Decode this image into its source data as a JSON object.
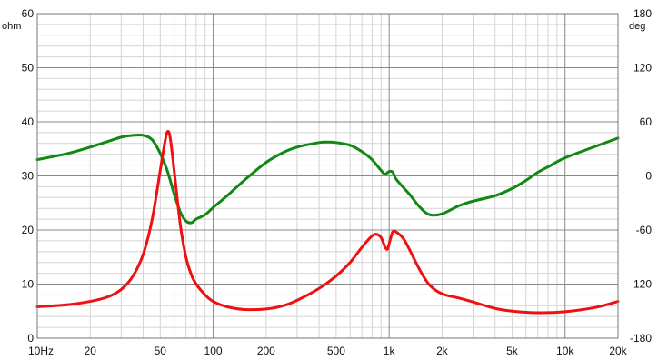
{
  "chart_data": {
    "type": "line",
    "title": "",
    "x_scale": "log",
    "xlim": [
      10,
      20000
    ],
    "x_ticks": [
      {
        "value": 10,
        "label": "10Hz"
      },
      {
        "value": 20,
        "label": "20"
      },
      {
        "value": 50,
        "label": "50"
      },
      {
        "value": 100,
        "label": "100"
      },
      {
        "value": 200,
        "label": "200"
      },
      {
        "value": 500,
        "label": "500"
      },
      {
        "value": 1000,
        "label": "1k"
      },
      {
        "value": 2000,
        "label": "2k"
      },
      {
        "value": 5000,
        "label": "5k"
      },
      {
        "value": 10000,
        "label": "10k"
      },
      {
        "value": 20000,
        "label": "20k"
      }
    ],
    "y_left": {
      "unit": "ohm",
      "ylim": [
        0,
        60
      ],
      "ticks": [
        0,
        10,
        20,
        30,
        40,
        50,
        60
      ],
      "tick_labels": [
        "0",
        "10",
        "20",
        "30",
        "40",
        "50",
        "60"
      ]
    },
    "y_right": {
      "unit": "deg",
      "ylim": [
        -180,
        180
      ],
      "ticks": [
        -180,
        -120,
        -60,
        0,
        60,
        120,
        180
      ],
      "tick_labels": [
        "-180",
        "-120",
        "-60",
        "0",
        "60",
        "120",
        "180"
      ]
    },
    "grid": true,
    "colors": {
      "impedance": "#ee1111",
      "phase": "#118811",
      "grid_major": "#888888",
      "grid_minor": "#d4d4d4",
      "frame": "#777777"
    },
    "series": [
      {
        "axis": "left",
        "points": [
          [
            10,
            5.8
          ],
          [
            15,
            6.2
          ],
          [
            20,
            6.8
          ],
          [
            25,
            7.6
          ],
          [
            30,
            9.0
          ],
          [
            35,
            11.5
          ],
          [
            40,
            15.5
          ],
          [
            45,
            22.0
          ],
          [
            50,
            31.0
          ],
          [
            53,
            36.0
          ],
          [
            55,
            38.2
          ],
          [
            57,
            37.0
          ],
          [
            60,
            31.0
          ],
          [
            65,
            21.0
          ],
          [
            70,
            15.0
          ],
          [
            75,
            11.8
          ],
          [
            80,
            10.0
          ],
          [
            90,
            8.0
          ],
          [
            100,
            6.8
          ],
          [
            120,
            5.8
          ],
          [
            150,
            5.3
          ],
          [
            200,
            5.4
          ],
          [
            250,
            6.0
          ],
          [
            300,
            7.0
          ],
          [
            400,
            9.2
          ],
          [
            500,
            11.5
          ],
          [
            600,
            14.0
          ],
          [
            700,
            16.8
          ],
          [
            800,
            18.9
          ],
          [
            850,
            19.2
          ],
          [
            900,
            18.6
          ],
          [
            950,
            16.8
          ],
          [
            980,
            16.5
          ],
          [
            1010,
            18.0
          ],
          [
            1050,
            19.7
          ],
          [
            1100,
            19.6
          ],
          [
            1200,
            18.5
          ],
          [
            1300,
            16.5
          ],
          [
            1500,
            12.5
          ],
          [
            1700,
            9.8
          ],
          [
            2000,
            8.2
          ],
          [
            2500,
            7.4
          ],
          [
            3000,
            6.7
          ],
          [
            4000,
            5.5
          ],
          [
            5000,
            5.0
          ],
          [
            7000,
            4.7
          ],
          [
            10000,
            4.9
          ],
          [
            15000,
            5.7
          ],
          [
            20000,
            6.8
          ]
        ]
      },
      {
        "axis": "right",
        "points": [
          [
            10,
            18
          ],
          [
            15,
            25
          ],
          [
            20,
            32
          ],
          [
            25,
            38
          ],
          [
            30,
            43
          ],
          [
            35,
            45
          ],
          [
            40,
            45
          ],
          [
            45,
            40
          ],
          [
            50,
            25
          ],
          [
            55,
            5
          ],
          [
            60,
            -20
          ],
          [
            65,
            -40
          ],
          [
            70,
            -50
          ],
          [
            75,
            -52
          ],
          [
            80,
            -48
          ],
          [
            90,
            -43
          ],
          [
            100,
            -35
          ],
          [
            120,
            -22
          ],
          [
            150,
            -5
          ],
          [
            200,
            15
          ],
          [
            250,
            26
          ],
          [
            300,
            32
          ],
          [
            400,
            37
          ],
          [
            450,
            37.5
          ],
          [
            500,
            37
          ],
          [
            600,
            34
          ],
          [
            700,
            27
          ],
          [
            800,
            18
          ],
          [
            900,
            6
          ],
          [
            950,
            2
          ],
          [
            1000,
            5
          ],
          [
            1050,
            4
          ],
          [
            1100,
            -4
          ],
          [
            1300,
            -20
          ],
          [
            1500,
            -35
          ],
          [
            1700,
            -43
          ],
          [
            2000,
            -42
          ],
          [
            2500,
            -33
          ],
          [
            3000,
            -28
          ],
          [
            4000,
            -22
          ],
          [
            5000,
            -14
          ],
          [
            6000,
            -5
          ],
          [
            7000,
            4
          ],
          [
            8000,
            10
          ],
          [
            10000,
            20
          ],
          [
            15000,
            33
          ],
          [
            20000,
            42
          ]
        ]
      }
    ]
  }
}
